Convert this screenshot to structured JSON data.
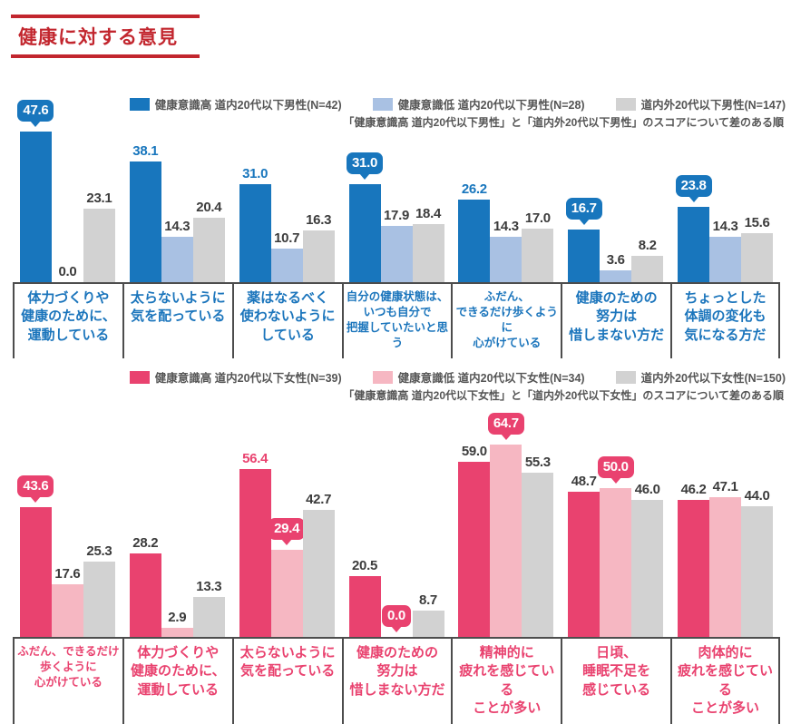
{
  "title": "健康に対する意見",
  "chart_data": [
    {
      "type": "bar",
      "group": "men",
      "legend": [
        {
          "label": "健康意識高 道内20代以下男性(N=42)",
          "swatch": "high"
        },
        {
          "label": "健康意識低 道内20代以下男性(N=28)",
          "swatch": "low"
        },
        {
          "label": "道内外20代以下男性(N=147)",
          "swatch": "all"
        }
      ],
      "note": "「健康意識高 道内20代以下男性」と「道内外20代以下男性」のスコアについて差のある順",
      "colors": {
        "high": "#1876bd",
        "low": "#a9c1e3",
        "all": "#d2d2d2",
        "label_text": "#1b75bc",
        "value_text": "#3c3c3c"
      },
      "series_names": [
        "健康意識高",
        "健康意識低",
        "道内外"
      ],
      "ylim": [
        0,
        50
      ],
      "grid": false,
      "legend_position": "top-right",
      "groups": [
        {
          "category": "体力づくりや健康のために、運動している",
          "lines": [
            "体力づくりや",
            "健康のために、",
            "運動している"
          ],
          "bars": [
            {
              "value": 47.6,
              "series": "high",
              "emphasis": "bubble"
            },
            {
              "value": 0.0,
              "series": "low",
              "emphasis": "plain"
            },
            {
              "value": 23.1,
              "series": "all",
              "emphasis": "plain"
            }
          ]
        },
        {
          "category": "太らないように気を配っている",
          "lines": [
            "太らないように",
            "気を配っている"
          ],
          "bars": [
            {
              "value": 38.1,
              "series": "high",
              "emphasis": "accent"
            },
            {
              "value": 14.3,
              "series": "low",
              "emphasis": "plain"
            },
            {
              "value": 20.4,
              "series": "all",
              "emphasis": "plain"
            }
          ]
        },
        {
          "category": "薬はなるべく使わないようにしている",
          "lines": [
            "薬はなるべく",
            "使わないように",
            "している"
          ],
          "bars": [
            {
              "value": 31.0,
              "series": "high",
              "emphasis": "accent"
            },
            {
              "value": 10.7,
              "series": "low",
              "emphasis": "plain"
            },
            {
              "value": 16.3,
              "series": "all",
              "emphasis": "plain"
            }
          ]
        },
        {
          "category": "自分の健康状態は、いつも自分で把握していたいと思う",
          "lines": [
            "自分の健康状態は、",
            "いつも自分で",
            "把握していたいと思う"
          ],
          "bars": [
            {
              "value": 31.0,
              "series": "high",
              "emphasis": "bubble"
            },
            {
              "value": 17.9,
              "series": "low",
              "emphasis": "plain"
            },
            {
              "value": 18.4,
              "series": "all",
              "emphasis": "plain"
            }
          ]
        },
        {
          "category": "ふだん、できるだけ歩くように心がけている",
          "lines": [
            "ふだん、",
            "できるだけ歩くように",
            "心がけている"
          ],
          "bars": [
            {
              "value": 26.2,
              "series": "high",
              "emphasis": "accent"
            },
            {
              "value": 14.3,
              "series": "low",
              "emphasis": "plain"
            },
            {
              "value": 17.0,
              "series": "all",
              "emphasis": "plain"
            }
          ]
        },
        {
          "category": "健康のための努力は惜しまない方だ",
          "lines": [
            "健康のための",
            "努力は",
            "惜しまない方だ"
          ],
          "bars": [
            {
              "value": 16.7,
              "series": "high",
              "emphasis": "bubble"
            },
            {
              "value": 3.6,
              "series": "low",
              "emphasis": "plain"
            },
            {
              "value": 8.2,
              "series": "all",
              "emphasis": "plain"
            }
          ]
        },
        {
          "category": "ちょっとした体調の変化も気になる方だ",
          "lines": [
            "ちょっとした",
            "体調の変化も",
            "気になる方だ"
          ],
          "bars": [
            {
              "value": 23.8,
              "series": "high",
              "emphasis": "bubble"
            },
            {
              "value": 14.3,
              "series": "low",
              "emphasis": "plain"
            },
            {
              "value": 15.6,
              "series": "all",
              "emphasis": "plain"
            }
          ]
        }
      ]
    },
    {
      "type": "bar",
      "group": "women",
      "legend": [
        {
          "label": "健康意識高 道内20代以下女性(N=39)",
          "swatch": "high"
        },
        {
          "label": "健康意識低 道内20代以下女性(N=34)",
          "swatch": "low"
        },
        {
          "label": "道内外20代以下女性(N=150)",
          "swatch": "all"
        }
      ],
      "note": "「健康意識高 道内20代以下女性」と「道内外20代以下女性」のスコアについて差のある順",
      "colors": {
        "high": "#e9426f",
        "low": "#f6b7c2",
        "all": "#d2d2d2",
        "label_text": "#e9426f",
        "value_text": "#3c3c3c"
      },
      "series_names": [
        "健康意識高",
        "健康意識低",
        "道内外"
      ],
      "ylim": [
        0,
        65
      ],
      "grid": false,
      "legend_position": "top-right",
      "groups": [
        {
          "category": "ふだん、できるだけ歩くように心がけている",
          "lines": [
            "ふだん、できるだけ",
            "歩くように",
            "心がけている"
          ],
          "bars": [
            {
              "value": 43.6,
              "series": "high",
              "emphasis": "bubble"
            },
            {
              "value": 17.6,
              "series": "low",
              "emphasis": "plain"
            },
            {
              "value": 25.3,
              "series": "all",
              "emphasis": "plain"
            }
          ]
        },
        {
          "category": "体力づくりや健康のために、運動している",
          "lines": [
            "体力づくりや",
            "健康のために、",
            "運動している"
          ],
          "bars": [
            {
              "value": 28.2,
              "series": "high",
              "emphasis": "plain"
            },
            {
              "value": 2.9,
              "series": "low",
              "emphasis": "plain"
            },
            {
              "value": 13.3,
              "series": "all",
              "emphasis": "plain"
            }
          ]
        },
        {
          "category": "太らないように気を配っている",
          "lines": [
            "太らないように",
            "気を配っている"
          ],
          "bars": [
            {
              "value": 56.4,
              "series": "high",
              "emphasis": "accent"
            },
            {
              "value": 29.4,
              "series": "low",
              "emphasis": "bubble"
            },
            {
              "value": 42.7,
              "series": "all",
              "emphasis": "plain"
            }
          ]
        },
        {
          "category": "健康のための努力は惜しまない方だ",
          "lines": [
            "健康のための",
            "努力は",
            "惜しまない方だ"
          ],
          "bars": [
            {
              "value": 20.5,
              "series": "high",
              "emphasis": "plain"
            },
            {
              "value": 0.0,
              "series": "low",
              "emphasis": "bubble"
            },
            {
              "value": 8.7,
              "series": "all",
              "emphasis": "plain"
            }
          ]
        },
        {
          "category": "精神的に疲れを感じていることが多い",
          "lines": [
            "精神的に",
            "疲れを感じている",
            "ことが多い"
          ],
          "bars": [
            {
              "value": 59.0,
              "series": "high",
              "emphasis": "plain"
            },
            {
              "value": 64.7,
              "series": "low",
              "emphasis": "bubble"
            },
            {
              "value": 55.3,
              "series": "all",
              "emphasis": "plain"
            }
          ]
        },
        {
          "category": "日頃、睡眠不足を感じている",
          "lines": [
            "日頃、",
            "睡眠不足を",
            "感じている"
          ],
          "bars": [
            {
              "value": 48.7,
              "series": "high",
              "emphasis": "plain"
            },
            {
              "value": 50.0,
              "series": "low",
              "emphasis": "bubble"
            },
            {
              "value": 46.0,
              "series": "all",
              "emphasis": "plain"
            }
          ]
        },
        {
          "category": "肉体的に疲れを感じていることが多い",
          "lines": [
            "肉体的に",
            "疲れを感じている",
            "ことが多い"
          ],
          "bars": [
            {
              "value": 46.2,
              "series": "high",
              "emphasis": "plain"
            },
            {
              "value": 47.1,
              "series": "low",
              "emphasis": "plain"
            },
            {
              "value": 44.0,
              "series": "all",
              "emphasis": "plain"
            }
          ]
        }
      ]
    }
  ]
}
